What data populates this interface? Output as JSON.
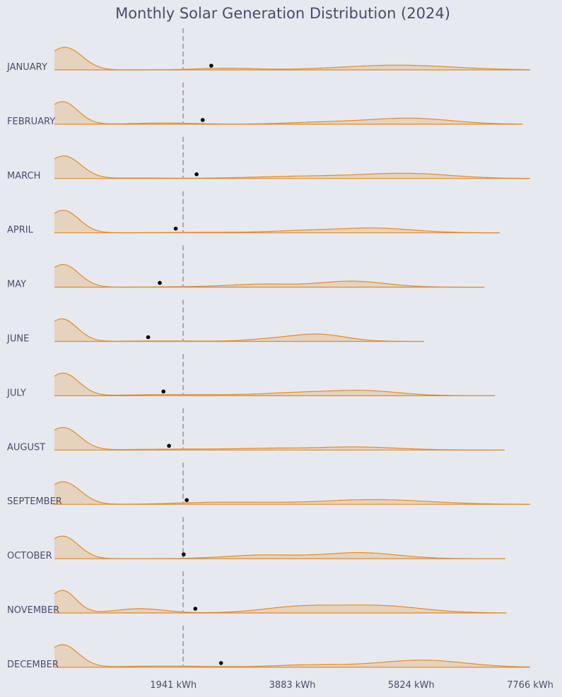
{
  "chart_data": {
    "type": "ridgeline",
    "title": "Monthly Solar Generation Distribution (2024)",
    "xlabel": "",
    "ylabel": "",
    "x_unit": "kWh",
    "xlim": [
      0,
      7766
    ],
    "x_ticks": [
      {
        "value": 1941,
        "label": "1941 kWh"
      },
      {
        "value": 3883,
        "label": "3883 kWh"
      },
      {
        "value": 5824,
        "label": "5824 kWh"
      },
      {
        "value": 7766,
        "label": "7766 kWh"
      }
    ],
    "reference_line": {
      "value": 2100,
      "style": "dashed",
      "color": "#aaaaaa"
    },
    "fill_color": "#e6d3bd",
    "line_color": "#e08c28",
    "mean_marker_color": "#000000",
    "grid": false,
    "peak_density_scale": 1.0,
    "series": [
      {
        "name": "JANUARY",
        "mean": 2560,
        "x_max": 7766,
        "components": [
          {
            "mu": 170,
            "sd": 280,
            "w": 0.95
          },
          {
            "mu": 2800,
            "sd": 480,
            "w": 0.07
          },
          {
            "mu": 5600,
            "sd": 900,
            "w": 0.2
          }
        ]
      },
      {
        "name": "FEBRUARY",
        "mean": 2420,
        "x_max": 7640,
        "components": [
          {
            "mu": 130,
            "sd": 250,
            "w": 0.95
          },
          {
            "mu": 1800,
            "sd": 500,
            "w": 0.05
          },
          {
            "mu": 4400,
            "sd": 600,
            "w": 0.08
          },
          {
            "mu": 5800,
            "sd": 680,
            "w": 0.25
          }
        ]
      },
      {
        "name": "MARCH",
        "mean": 2320,
        "x_max": 7766,
        "components": [
          {
            "mu": 150,
            "sd": 280,
            "w": 0.95
          },
          {
            "mu": 1400,
            "sd": 500,
            "w": 0.02
          },
          {
            "mu": 4200,
            "sd": 900,
            "w": 0.1
          },
          {
            "mu": 5800,
            "sd": 700,
            "w": 0.2
          }
        ]
      },
      {
        "name": "APRIL",
        "mean": 1980,
        "x_max": 7270,
        "components": [
          {
            "mu": 140,
            "sd": 260,
            "w": 0.95
          },
          {
            "mu": 2500,
            "sd": 800,
            "w": 0.02
          },
          {
            "mu": 4000,
            "sd": 500,
            "w": 0.07
          },
          {
            "mu": 5200,
            "sd": 650,
            "w": 0.2
          }
        ]
      },
      {
        "name": "MAY",
        "mean": 1720,
        "x_max": 7020,
        "components": [
          {
            "mu": 140,
            "sd": 260,
            "w": 0.95
          },
          {
            "mu": 2300,
            "sd": 600,
            "w": 0.02
          },
          {
            "mu": 3400,
            "sd": 500,
            "w": 0.12
          },
          {
            "mu": 4850,
            "sd": 550,
            "w": 0.25
          }
        ]
      },
      {
        "name": "JUNE",
        "mean": 1530,
        "x_max": 6030,
        "components": [
          {
            "mu": 120,
            "sd": 250,
            "w": 0.95
          },
          {
            "mu": 1800,
            "sd": 600,
            "w": 0.02
          },
          {
            "mu": 3500,
            "sd": 400,
            "w": 0.08
          },
          {
            "mu": 4300,
            "sd": 450,
            "w": 0.3
          }
        ]
      },
      {
        "name": "JULY",
        "mean": 1780,
        "x_max": 7190,
        "components": [
          {
            "mu": 140,
            "sd": 260,
            "w": 0.95
          },
          {
            "mu": 1600,
            "sd": 500,
            "w": 0.04
          },
          {
            "mu": 2700,
            "sd": 600,
            "w": 0.04
          },
          {
            "mu": 3900,
            "sd": 500,
            "w": 0.1
          },
          {
            "mu": 5000,
            "sd": 600,
            "w": 0.22
          }
        ]
      },
      {
        "name": "AUGUST",
        "mean": 1870,
        "x_max": 7350,
        "components": [
          {
            "mu": 140,
            "sd": 270,
            "w": 0.95
          },
          {
            "mu": 2200,
            "sd": 900,
            "w": 0.04
          },
          {
            "mu": 3500,
            "sd": 500,
            "w": 0.05
          },
          {
            "mu": 4900,
            "sd": 700,
            "w": 0.13
          }
        ]
      },
      {
        "name": "SEPTEMBER",
        "mean": 2160,
        "x_max": 7766,
        "components": [
          {
            "mu": 140,
            "sd": 280,
            "w": 0.95
          },
          {
            "mu": 2500,
            "sd": 600,
            "w": 0.07
          },
          {
            "mu": 3300,
            "sd": 500,
            "w": 0.04
          },
          {
            "mu": 5200,
            "sd": 900,
            "w": 0.2
          }
        ]
      },
      {
        "name": "OCTOBER",
        "mean": 2110,
        "x_max": 7360,
        "components": [
          {
            "mu": 130,
            "sd": 260,
            "w": 0.95
          },
          {
            "mu": 3400,
            "sd": 600,
            "w": 0.15
          },
          {
            "mu": 5000,
            "sd": 600,
            "w": 0.25
          }
        ]
      },
      {
        "name": "NOVEMBER",
        "mean": 2300,
        "x_max": 7380,
        "components": [
          {
            "mu": 130,
            "sd": 220,
            "w": 0.95
          },
          {
            "mu": 1400,
            "sd": 400,
            "w": 0.18
          },
          {
            "mu": 4000,
            "sd": 600,
            "w": 0.25
          },
          {
            "mu": 5300,
            "sd": 700,
            "w": 0.3
          }
        ]
      },
      {
        "name": "DECEMBER",
        "mean": 2720,
        "x_max": 7766,
        "components": [
          {
            "mu": 130,
            "sd": 260,
            "w": 0.95
          },
          {
            "mu": 1800,
            "sd": 800,
            "w": 0.05
          },
          {
            "mu": 4200,
            "sd": 600,
            "w": 0.1
          },
          {
            "mu": 6000,
            "sd": 700,
            "w": 0.3
          }
        ]
      }
    ]
  }
}
